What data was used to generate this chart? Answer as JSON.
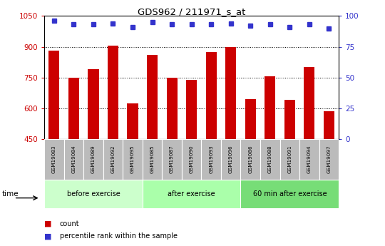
{
  "title": "GDS962 / 211971_s_at",
  "categories": [
    "GSM19083",
    "GSM19084",
    "GSM19089",
    "GSM19092",
    "GSM19095",
    "GSM19085",
    "GSM19087",
    "GSM19090",
    "GSM19093",
    "GSM19096",
    "GSM19086",
    "GSM19088",
    "GSM19091",
    "GSM19094",
    "GSM19097"
  ],
  "count_values": [
    880,
    750,
    790,
    905,
    625,
    860,
    750,
    740,
    875,
    900,
    645,
    755,
    640,
    800,
    585
  ],
  "percentile_values": [
    96,
    93,
    93,
    94,
    91,
    95,
    93,
    93,
    93,
    94,
    92,
    93,
    91,
    93,
    90
  ],
  "ylim_left": [
    450,
    1050
  ],
  "ylim_right": [
    0,
    100
  ],
  "yticks_left": [
    450,
    600,
    750,
    900,
    1050
  ],
  "yticks_right": [
    0,
    25,
    50,
    75,
    100
  ],
  "bar_color": "#cc0000",
  "dot_color": "#3333cc",
  "groups": [
    {
      "label": "before exercise",
      "start": 0,
      "end": 5,
      "color": "#ccffcc"
    },
    {
      "label": "after exercise",
      "start": 5,
      "end": 10,
      "color": "#aaffaa"
    },
    {
      "label": "60 min after exercise",
      "start": 10,
      "end": 15,
      "color": "#77dd77"
    }
  ],
  "legend_count_label": "count",
  "legend_pct_label": "percentile rank within the sample",
  "axis_label_color_left": "#cc0000",
  "axis_label_color_right": "#3333cc",
  "background_xtick": "#bbbbbb",
  "time_label": "time"
}
